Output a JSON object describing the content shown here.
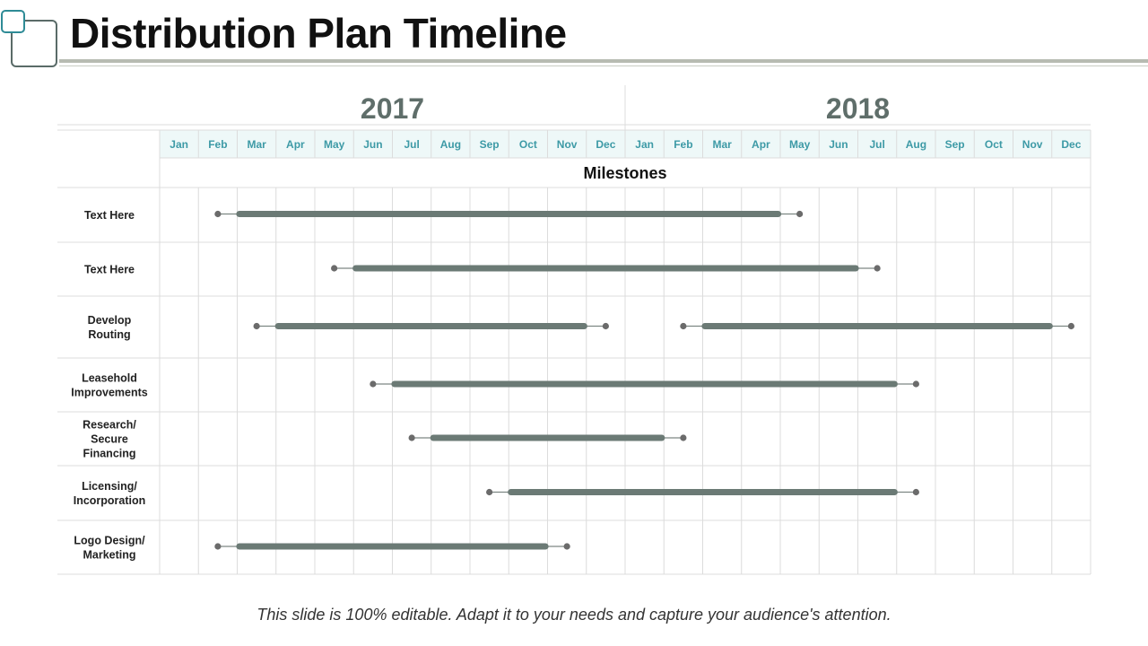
{
  "slide": {
    "title": "Distribution Plan Timeline",
    "footer": "This slide is 100% editable. Adapt it to your needs and capture your audience's attention."
  },
  "timeline": {
    "years": [
      "2017",
      "2018"
    ],
    "months": [
      "Jan",
      "Feb",
      "Mar",
      "Apr",
      "May",
      "Jun",
      "Jul",
      "Aug",
      "Sep",
      "Oct",
      "Nov",
      "Dec"
    ],
    "milestones_label": "Milestones",
    "colors": {
      "bar": "#6b7a75",
      "grid": "#dcdcdc",
      "month_text": "#3d9aa6",
      "month_bg": "#eef8f8",
      "year_text": "#5f6e6a",
      "label_text": "#222222"
    },
    "rows": [
      {
        "lines": [
          "Text Here"
        ],
        "segments": [
          {
            "start": "2017-02",
            "end": "2018-05"
          }
        ]
      },
      {
        "lines": [
          "Text Here"
        ],
        "segments": [
          {
            "start": "2017-05",
            "end": "2018-07"
          }
        ]
      },
      {
        "lines": [
          "Develop",
          "Routing"
        ],
        "segments": [
          {
            "start": "2017-03",
            "end": "2017-12"
          },
          {
            "start": "2018-02",
            "end": "2018-12"
          }
        ]
      },
      {
        "lines": [
          "Leasehold",
          "Improvements"
        ],
        "segments": [
          {
            "start": "2017-06",
            "end": "2018-08"
          }
        ]
      },
      {
        "lines": [
          "Research/",
          "Secure",
          "Financing"
        ],
        "segments": [
          {
            "start": "2017-07",
            "end": "2018-02"
          }
        ]
      },
      {
        "lines": [
          "Licensing/",
          "Incorporation"
        ],
        "segments": [
          {
            "start": "2017-09",
            "end": "2018-08"
          }
        ]
      },
      {
        "lines": [
          "Logo Design/",
          "Marketing"
        ],
        "segments": [
          {
            "start": "2017-02",
            "end": "2017-11"
          }
        ]
      }
    ]
  }
}
